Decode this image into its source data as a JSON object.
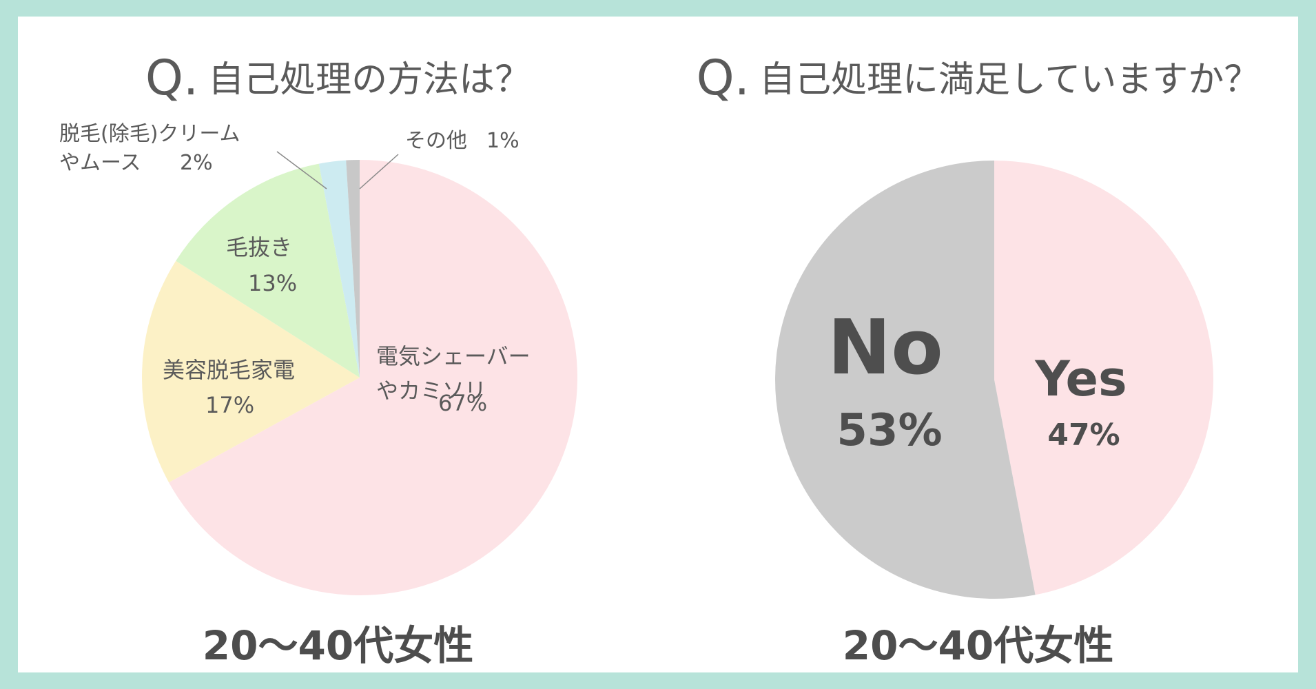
{
  "charts": [
    {
      "title_mark": "Q.",
      "title": "自己処理の方法は？",
      "footer": "20〜40代女性",
      "chart_data": {
        "type": "pie",
        "slices": [
          {
            "label_lines": [
              "電気シェーバー",
              "やカミソリ"
            ],
            "pct_text": "67%",
            "value": 67,
            "color": "#fde3e6"
          },
          {
            "label_lines": [
              "美容脱毛家電"
            ],
            "pct_text": "17%",
            "value": 17,
            "color": "#fcf1c6"
          },
          {
            "label_lines": [
              "毛抜き"
            ],
            "pct_text": "13%",
            "value": 13,
            "color": "#d9f5c9"
          },
          {
            "label_lines": [
              "脱毛(除毛)クリーム",
              "やムース"
            ],
            "pct_text": "2%",
            "value": 2,
            "color": "#cdebf1"
          },
          {
            "label_lines": [
              "その他"
            ],
            "pct_text": "1%",
            "value": 1,
            "color": "#c8c8c8"
          }
        ]
      }
    },
    {
      "title_mark": "Q.",
      "title": "自己処理に満足していますか？",
      "footer": "20〜40代女性",
      "chart_data": {
        "type": "pie",
        "slices": [
          {
            "label_lines": [
              "Yes"
            ],
            "pct_text": "47%",
            "value": 47,
            "color": "#fde3e6"
          },
          {
            "label_lines": [
              "No"
            ],
            "pct_text": "53%",
            "value": 53,
            "color": "#cbcbcb"
          }
        ]
      }
    }
  ]
}
